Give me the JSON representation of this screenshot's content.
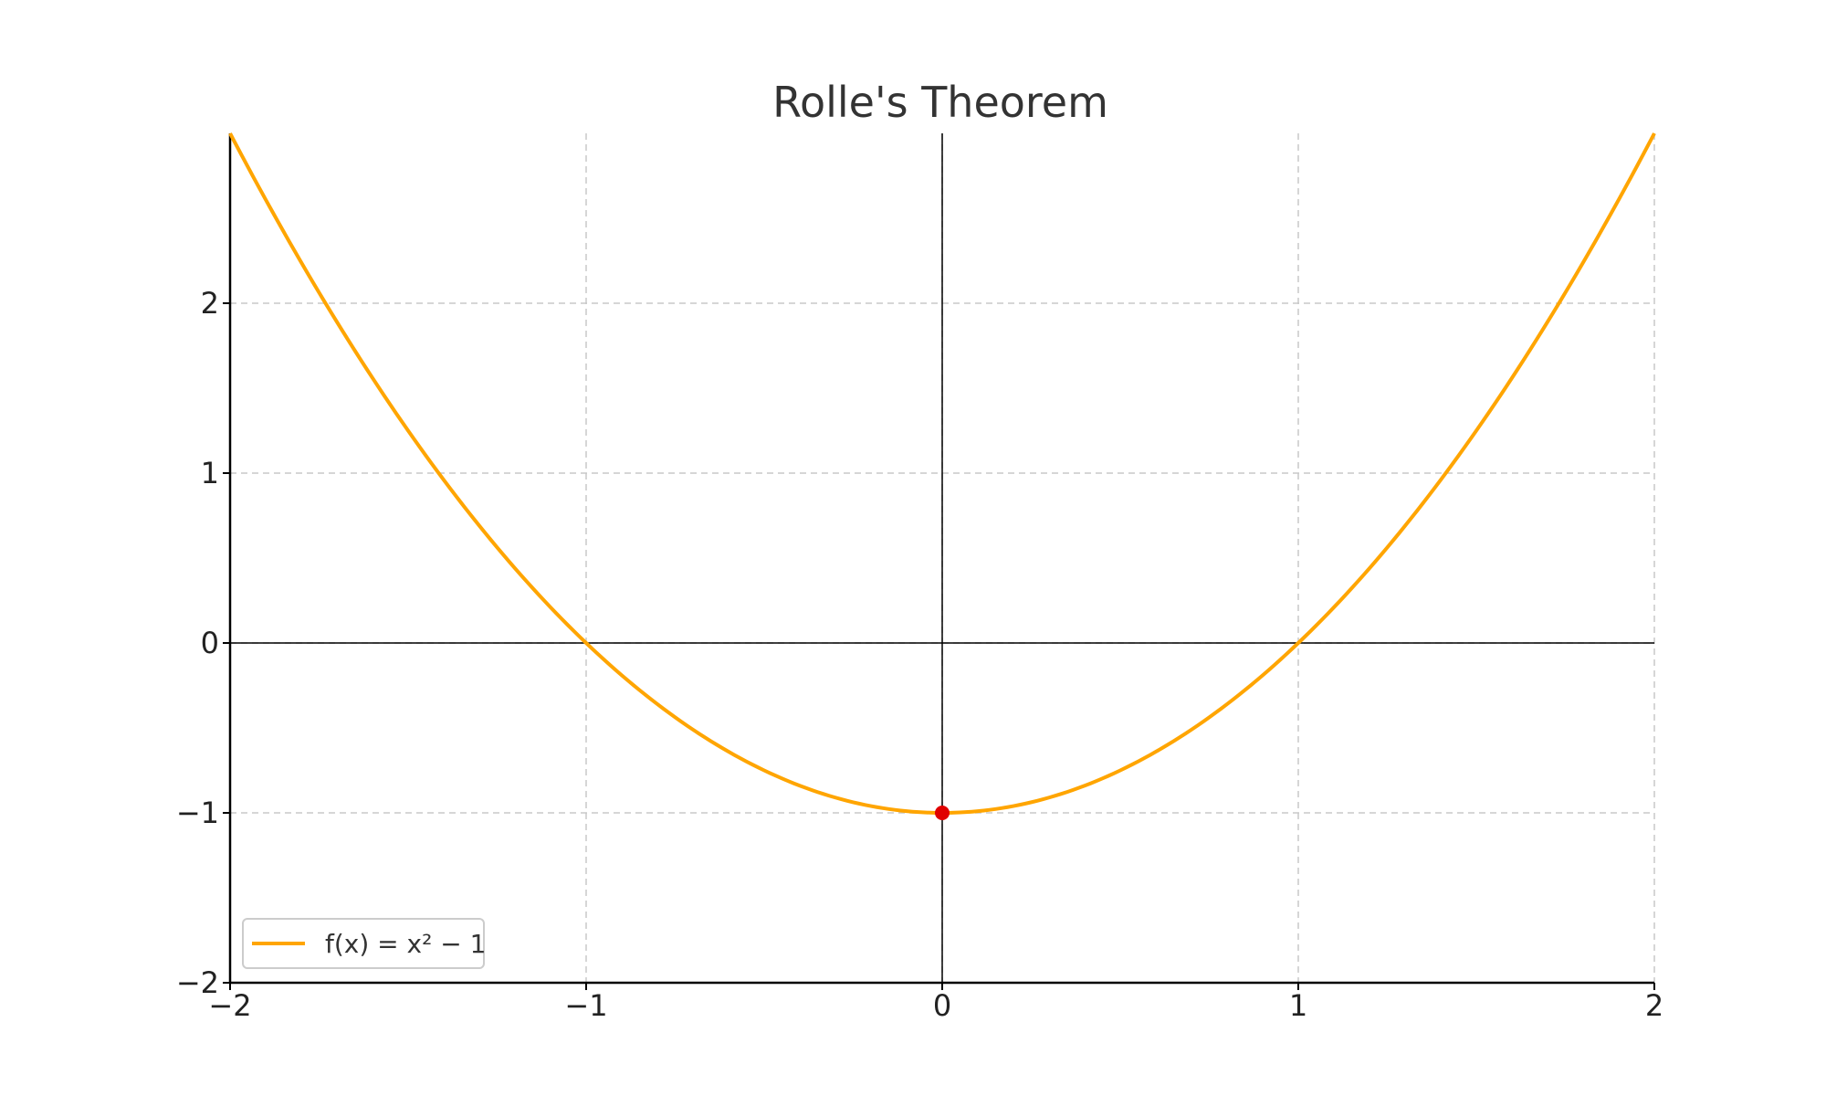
{
  "chart_data": {
    "type": "line",
    "title": "Rolle's Theorem",
    "xlabel": "",
    "ylabel": "",
    "xlim": [
      -2,
      2
    ],
    "ylim": [
      -2,
      3
    ],
    "x_ticks": [
      -2,
      -1,
      0,
      1,
      2
    ],
    "x_tick_labels": [
      "−2",
      "−1",
      "0",
      "1",
      "2"
    ],
    "y_ticks": [
      -2,
      -1,
      0,
      1,
      2
    ],
    "y_tick_labels": [
      "−2",
      "−1",
      "0",
      "1",
      "2"
    ],
    "grid": true,
    "grid_style": "dashed",
    "reference_lines": {
      "x": 0,
      "y": 0
    },
    "series": [
      {
        "name": "f(x) = x² − 1",
        "function": "x^2 - 1",
        "x": [
          -2,
          -1.5,
          -1,
          -0.5,
          0,
          0.5,
          1,
          1.5,
          2
        ],
        "values": [
          3,
          1.25,
          0,
          -0.75,
          -1,
          -0.75,
          0,
          1.25,
          3
        ],
        "color": "#FFA500"
      }
    ],
    "points": [
      {
        "x": 0,
        "y": -1,
        "color": "#E00000"
      }
    ],
    "legend": {
      "position": "lower-left"
    },
    "colors": {
      "curve": "#FFA500",
      "point": "#E00000",
      "grid": "#c8c8c8",
      "axis": "#000000"
    }
  }
}
